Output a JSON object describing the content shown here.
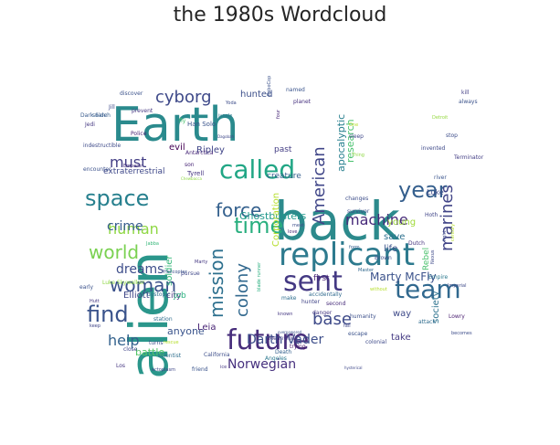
{
  "title": "the 1980s Wordcloud",
  "chart_data": {
    "type": "wordcloud",
    "title": "the 1980s Wordcloud",
    "palette": "viridis",
    "words": [
      {
        "text": "back",
        "size": 58,
        "color": "#2c8a8c"
      },
      {
        "text": "alien",
        "size": 58,
        "color": "#2a968b"
      },
      {
        "text": "Earth",
        "size": 52,
        "color": "#2a8a8d"
      },
      {
        "text": "replicant",
        "size": 34,
        "color": "#2d7a8e"
      },
      {
        "text": "future",
        "size": 30,
        "color": "#472d7b"
      },
      {
        "text": "sent",
        "size": 30,
        "color": "#443983"
      },
      {
        "text": "called",
        "size": 28,
        "color": "#21a685"
      },
      {
        "text": "team",
        "size": 28,
        "color": "#30688e"
      },
      {
        "text": "space",
        "size": 24,
        "color": "#27808e"
      },
      {
        "text": "time",
        "size": 24,
        "color": "#29af7f"
      },
      {
        "text": "find",
        "size": 24,
        "color": "#3a538b"
      },
      {
        "text": "year",
        "size": 24,
        "color": "#355f8d"
      },
      {
        "text": "mission",
        "size": 20,
        "color": "#2d708e"
      },
      {
        "text": "force",
        "size": 20,
        "color": "#34608d"
      },
      {
        "text": "world",
        "size": 20,
        "color": "#7ad151"
      },
      {
        "text": "woman",
        "size": 20,
        "color": "#3b518b"
      },
      {
        "text": "cyborg",
        "size": 18,
        "color": "#3e4989"
      },
      {
        "text": "American",
        "size": 18,
        "color": "#404688"
      },
      {
        "text": "marines",
        "size": 18,
        "color": "#414487"
      },
      {
        "text": "colony",
        "size": 18,
        "color": "#31688e"
      },
      {
        "text": "base",
        "size": 18,
        "color": "#3e4a89"
      },
      {
        "text": "help",
        "size": 16,
        "color": "#33628d"
      },
      {
        "text": "human",
        "size": 16,
        "color": "#8fd744"
      },
      {
        "text": "machine",
        "size": 16,
        "color": "#472a7a"
      },
      {
        "text": "must",
        "size": 16,
        "color": "#433e85"
      },
      {
        "text": "crime",
        "size": 14,
        "color": "#365c8d"
      },
      {
        "text": "dreams",
        "size": 14,
        "color": "#3d4d8a"
      },
      {
        "text": "Norwegian",
        "size": 14,
        "color": "#46307e"
      },
      {
        "text": "Darth Vader",
        "size": 14,
        "color": "#3d4e8a"
      },
      {
        "text": "Marty McFly",
        "size": 12,
        "color": "#3b528b"
      },
      {
        "text": "apocalyptic",
        "size": 11,
        "color": "#277f8e"
      },
      {
        "text": "research",
        "size": 11,
        "color": "#48c16e"
      },
      {
        "text": "Ghostbusters",
        "size": 11,
        "color": "#1f988b"
      },
      {
        "text": "Corporation",
        "size": 10,
        "color": "#b5de2b"
      },
      {
        "text": "soldier",
        "size": 10,
        "color": "#35b779"
      },
      {
        "text": "battle",
        "size": 11,
        "color": "#54c568"
      },
      {
        "text": "anyone",
        "size": 11,
        "color": "#3a548c"
      },
      {
        "text": "Elliott",
        "size": 10,
        "color": "#3f4788"
      },
      {
        "text": "Leia",
        "size": 10,
        "color": "#482475"
      },
      {
        "text": "society",
        "size": 10,
        "color": "#2c728e"
      },
      {
        "text": "young",
        "size": 10,
        "color": "#a0da39"
      },
      {
        "text": "way",
        "size": 10,
        "color": "#3e4a89"
      },
      {
        "text": "take",
        "size": 10,
        "color": "#443a83"
      },
      {
        "text": "save",
        "size": 10,
        "color": "#2d708e"
      },
      {
        "text": "life",
        "size": 10,
        "color": "#3b528b"
      },
      {
        "text": "Rebel",
        "size": 9,
        "color": "#4ac16d"
      },
      {
        "text": "Ripley",
        "size": 10,
        "color": "#404588"
      },
      {
        "text": "hunted",
        "size": 10,
        "color": "#3c4f8a"
      },
      {
        "text": "evil",
        "size": 10,
        "color": "#440154"
      },
      {
        "text": "past",
        "size": 9,
        "color": "#433d84"
      },
      {
        "text": "creature",
        "size": 9,
        "color": "#355e8d"
      },
      {
        "text": "extraterrestrial",
        "size": 9,
        "color": "#3f4889"
      },
      {
        "text": "city",
        "size": 9,
        "color": "#462f7c"
      },
      {
        "text": "first",
        "size": 9,
        "color": "#482576"
      },
      {
        "text": "job",
        "size": 9,
        "color": "#2ab07f"
      },
      {
        "text": "Luke",
        "size": 8,
        "color": "#3e4c8a"
      },
      {
        "text": "Han Solo",
        "size": 7,
        "color": "#3a548c"
      },
      {
        "text": "Tyrell",
        "size": 7,
        "color": "#453581"
      },
      {
        "text": "Antarctica",
        "size": 6,
        "color": "#482878"
      },
      {
        "text": "Dark Side",
        "size": 6,
        "color": "#375a8c"
      },
      {
        "text": "Terminator",
        "size": 6,
        "color": "#433e85"
      },
      {
        "text": "Brown",
        "size": 6,
        "color": "#3d4e8a"
      },
      {
        "text": "Dutch",
        "size": 6,
        "color": "#46327e"
      },
      {
        "text": "Hoth",
        "size": 6,
        "color": "#404688"
      },
      {
        "text": "Empire",
        "size": 6,
        "color": "#2a778e"
      },
      {
        "text": "Lowry",
        "size": 6,
        "color": "#481d6f"
      },
      {
        "text": "becomes",
        "size": 5,
        "color": "#3d4d8a"
      },
      {
        "text": "Meanwhile",
        "size": 6,
        "color": "#443983"
      },
      {
        "text": "trying",
        "size": 6,
        "color": "#471365"
      },
      {
        "text": "Death",
        "size": 6,
        "color": "#34608d"
      },
      {
        "text": "Angeles",
        "size": 6,
        "color": "#2a778e"
      },
      {
        "text": "California",
        "size": 6,
        "color": "#3d4e8a"
      },
      {
        "text": "scientist",
        "size": 6,
        "color": "#2e6e8e"
      },
      {
        "text": "friend",
        "size": 6,
        "color": "#3a548c"
      },
      {
        "text": "ectoplasm",
        "size": 5,
        "color": "#3f4788"
      },
      {
        "text": "close",
        "size": 6,
        "color": "#404588"
      },
      {
        "text": "Los",
        "size": 6,
        "color": "#453581"
      },
      {
        "text": "hunter",
        "size": 6,
        "color": "#414487"
      },
      {
        "text": "second",
        "size": 6,
        "color": "#472c7a"
      },
      {
        "text": "humanity",
        "size": 6,
        "color": "#3c508b"
      },
      {
        "text": "colonial",
        "size": 6,
        "color": "#3e4a89"
      },
      {
        "text": "Master",
        "size": 5,
        "color": "#31688e"
      },
      {
        "text": "accidentally",
        "size": 6,
        "color": "#306a8e"
      },
      {
        "text": "make",
        "size": 6,
        "color": "#2e6e8e"
      },
      {
        "text": "danger",
        "size": 6,
        "color": "#453882"
      },
      {
        "text": "escape",
        "size": 6,
        "color": "#3b528b"
      },
      {
        "text": "blade runner",
        "size": 5,
        "color": "#29af7f"
      },
      {
        "text": "pursue",
        "size": 6,
        "color": "#3f4788"
      },
      {
        "text": "Marty",
        "size": 5,
        "color": "#453882"
      },
      {
        "text": "dystopic",
        "size": 6,
        "color": "#2e6f8e"
      },
      {
        "text": "Luke Skywalker",
        "size": 6,
        "color": "#8fd744"
      },
      {
        "text": "station",
        "size": 6,
        "color": "#2e6e8e"
      },
      {
        "text": "Emperor",
        "size": 5,
        "color": "#46327e"
      },
      {
        "text": "encounter",
        "size": 6,
        "color": "#3b518b"
      },
      {
        "text": "son",
        "size": 6,
        "color": "#482576"
      },
      {
        "text": "turns",
        "size": 6,
        "color": "#3c4f8a"
      },
      {
        "text": "Jedi",
        "size": 6,
        "color": "#453882"
      },
      {
        "text": "Jill",
        "size": 6,
        "color": "#3e4a89"
      },
      {
        "text": "Police",
        "size": 6,
        "color": "#482475"
      },
      {
        "text": "search",
        "size": 6,
        "color": "#355e8d"
      },
      {
        "text": "discover",
        "size": 6,
        "color": "#3b528b"
      },
      {
        "text": "prevent",
        "size": 6,
        "color": "#453882"
      },
      {
        "text": "fly",
        "size": 6,
        "color": "#4ac16d"
      },
      {
        "text": "Yoda",
        "size": 5,
        "color": "#3d4d8a"
      },
      {
        "text": "jungle",
        "size": 5,
        "color": "#2a788e"
      },
      {
        "text": "Dagobah",
        "size": 4,
        "color": "#3f4889"
      },
      {
        "text": "named",
        "size": 6,
        "color": "#3a548c"
      },
      {
        "text": "planet",
        "size": 6,
        "color": "#46307e"
      },
      {
        "text": "RoboCop",
        "size": 5,
        "color": "#3b528b"
      },
      {
        "text": "four",
        "size": 5,
        "color": "#482878"
      },
      {
        "text": "sleep",
        "size": 6,
        "color": "#3f4889"
      },
      {
        "text": "Thing",
        "size": 5,
        "color": "#8fd744"
      },
      {
        "text": "One",
        "size": 5,
        "color": "#b5de2b"
      },
      {
        "text": "kill",
        "size": 6,
        "color": "#433e85"
      },
      {
        "text": "always",
        "size": 6,
        "color": "#3b528b"
      },
      {
        "text": "Detroit",
        "size": 5,
        "color": "#95d840"
      },
      {
        "text": "stop",
        "size": 6,
        "color": "#3d4d8a"
      },
      {
        "text": "invented",
        "size": 6,
        "color": "#3e4989"
      },
      {
        "text": "changes",
        "size": 6,
        "color": "#3d4e8a"
      },
      {
        "text": "survivor",
        "size": 6,
        "color": "#3d4e8a"
      },
      {
        "text": "river",
        "size": 6,
        "color": "#3a548c"
      },
      {
        "text": "fight",
        "size": 5,
        "color": "#3e4a89"
      },
      {
        "text": "century",
        "size": 5,
        "color": "#b5de2b"
      },
      {
        "text": "Imperial",
        "size": 5,
        "color": "#3e4a89"
      },
      {
        "text": "attack",
        "size": 6,
        "color": "#2f6c8e"
      },
      {
        "text": "Nexus",
        "size": 5,
        "color": "#3e4a89"
      },
      {
        "text": "without",
        "size": 5,
        "color": "#b5de2b"
      },
      {
        "text": "meet",
        "size": 5,
        "color": "#3c4f8a"
      },
      {
        "text": "love",
        "size": 5,
        "color": "#482979"
      },
      {
        "text": "fall",
        "size": 5,
        "color": "#3f4788"
      },
      {
        "text": "Helicopter",
        "size": 5,
        "color": "#3b528b"
      },
      {
        "text": "keep",
        "size": 5,
        "color": "#404588"
      },
      {
        "text": "early",
        "size": 6,
        "color": "#3b528b"
      },
      {
        "text": "Hutt",
        "size": 5,
        "color": "#453882"
      },
      {
        "text": "rescue",
        "size": 5,
        "color": "#b5de2b"
      },
      {
        "text": "indestructible",
        "size": 6,
        "color": "#3e4a89"
      },
      {
        "text": "Jabba",
        "size": 5,
        "color": "#35b779"
      },
      {
        "text": "Chewbacca",
        "size": 4,
        "color": "#8fd744"
      },
      {
        "text": "known",
        "size": 5,
        "color": "#453882"
      },
      {
        "text": "form",
        "size": 5,
        "color": "#355f8d"
      },
      {
        "text": "overpowered",
        "size": 4,
        "color": "#3b528b"
      },
      {
        "text": "hysterical",
        "size": 4,
        "color": "#3f4889"
      },
      {
        "text": "ice",
        "size": 5,
        "color": "#453882"
      }
    ]
  }
}
